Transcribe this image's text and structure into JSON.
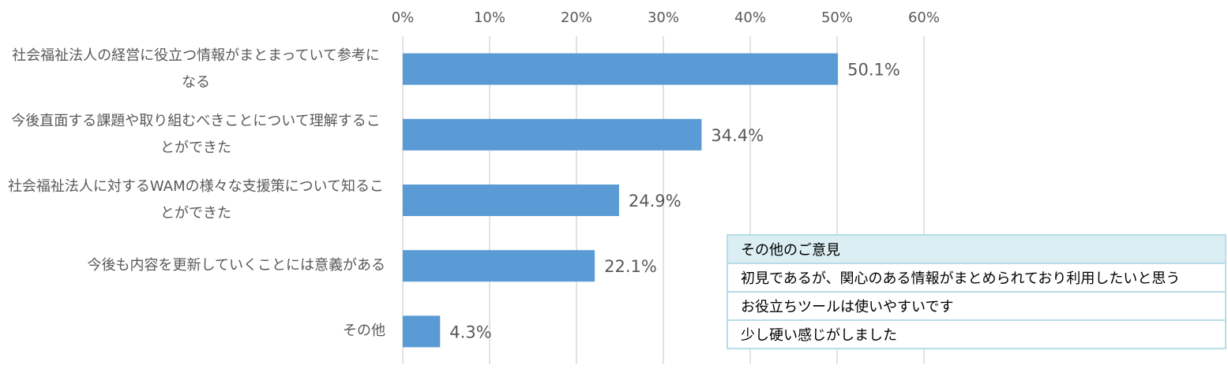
{
  "chart_data": {
    "type": "bar",
    "orientation": "horizontal",
    "categories": [
      "社会福祉法人の経営に役立つ情報がまとまっていて参考になる",
      "今後直面する課題や取り組むべきことについて理解することができた",
      "社会福祉法人に対するWAMの様々な支援策について知ることができた",
      "今後も内容を更新していくことには意義がある",
      "その他"
    ],
    "values": [
      50.1,
      34.4,
      24.9,
      22.1,
      4.3
    ],
    "value_labels": [
      "50.1%",
      "34.4%",
      "24.9%",
      "22.1%",
      "4.3%"
    ],
    "color": "#5b9bd5",
    "xlim": [
      0,
      60
    ],
    "xticks": [
      {
        "value": 0,
        "label": "0%"
      },
      {
        "value": 10,
        "label": "10%"
      },
      {
        "value": 20,
        "label": "20%"
      },
      {
        "value": 30,
        "label": "30%"
      },
      {
        "value": 40,
        "label": "40%"
      },
      {
        "value": 50,
        "label": "50%"
      },
      {
        "value": 60,
        "label": "60%"
      }
    ],
    "grid": true
  },
  "table": {
    "header": "その他のご意見",
    "rows": [
      "初見であるが、関心のある情報がまとめられており利用したいと思う",
      "お役立ちツールは使いやすいです",
      "少し硬い感じがしました"
    ]
  }
}
